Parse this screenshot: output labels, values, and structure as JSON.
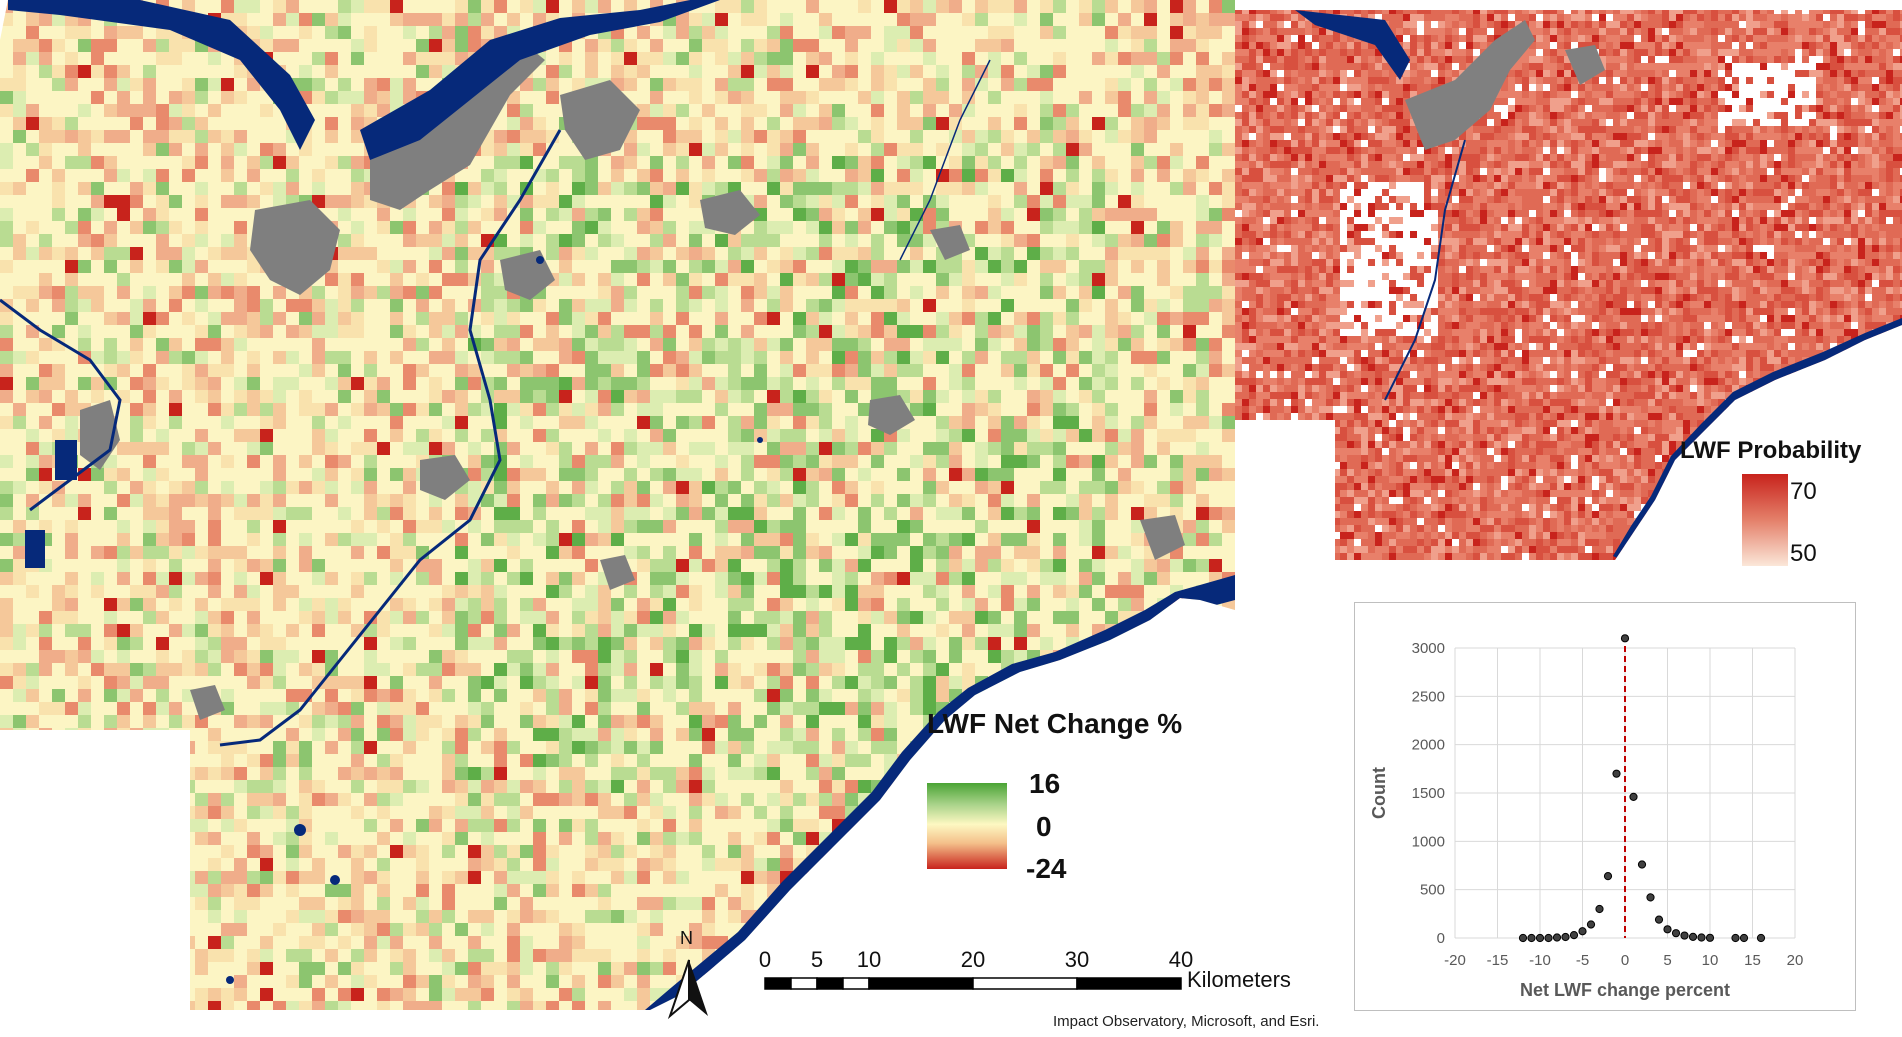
{
  "main_map": {
    "legend": {
      "title": "LWF Net Change %",
      "max_label": "16",
      "mid_label": "0",
      "min_label": "-24",
      "colors": {
        "high": "#4aa435",
        "mid": "#fdf8c2",
        "low": "#c8231c"
      }
    }
  },
  "inset_map": {
    "legend": {
      "title": "LWF Probability",
      "max_label": "70",
      "min_label": "50",
      "colors": {
        "high": "#c8231c",
        "low": "#fbe2d3"
      }
    }
  },
  "colors": {
    "water": "#06297a",
    "urban": "#7f7f7f",
    "background": "#ffffff"
  },
  "north_arrow": {
    "label": "N"
  },
  "scale_bar": {
    "ticks": [
      "0",
      "5",
      "10",
      "20",
      "30",
      "40"
    ],
    "tick_values": [
      0,
      5,
      10,
      20,
      30,
      40
    ],
    "unit": "Kilometers"
  },
  "attribution": "Impact Observatory, Microsoft, and Esri.",
  "chart_data": {
    "type": "scatter",
    "xlabel": "Net LWF change percent",
    "ylabel": "Count",
    "xlim": [
      -20,
      20
    ],
    "ylim": [
      0,
      3000
    ],
    "x_ticks": [
      "-20",
      "-15",
      "-10",
      "-5",
      "0",
      "5",
      "10",
      "15",
      "20"
    ],
    "x_tick_values": [
      -20,
      -15,
      -10,
      -5,
      0,
      5,
      10,
      15,
      20
    ],
    "y_ticks": [
      "0",
      "500",
      "1000",
      "1500",
      "2000",
      "2500",
      "3000"
    ],
    "y_tick_values": [
      0,
      500,
      1000,
      1500,
      2000,
      2500,
      3000
    ],
    "grid": true,
    "reference_line": {
      "x": 0,
      "color": "#c00000",
      "style": "dashed"
    },
    "points": [
      {
        "x": -12,
        "y": 0
      },
      {
        "x": -11,
        "y": 0
      },
      {
        "x": -10,
        "y": 0
      },
      {
        "x": -9,
        "y": 0
      },
      {
        "x": -8,
        "y": 5
      },
      {
        "x": -7,
        "y": 10
      },
      {
        "x": -6,
        "y": 30
      },
      {
        "x": -5,
        "y": 70
      },
      {
        "x": -4,
        "y": 140
      },
      {
        "x": -3,
        "y": 300
      },
      {
        "x": -2,
        "y": 640
      },
      {
        "x": -1,
        "y": 1700
      },
      {
        "x": 0,
        "y": 3100
      },
      {
        "x": 1,
        "y": 1460
      },
      {
        "x": 2,
        "y": 760
      },
      {
        "x": 3,
        "y": 420
      },
      {
        "x": 4,
        "y": 190
      },
      {
        "x": 5,
        "y": 90
      },
      {
        "x": 6,
        "y": 50
      },
      {
        "x": 7,
        "y": 25
      },
      {
        "x": 8,
        "y": 12
      },
      {
        "x": 9,
        "y": 5
      },
      {
        "x": 10,
        "y": 2
      },
      {
        "x": 13,
        "y": 0
      },
      {
        "x": 14,
        "y": 0
      },
      {
        "x": 16,
        "y": 0
      }
    ]
  }
}
